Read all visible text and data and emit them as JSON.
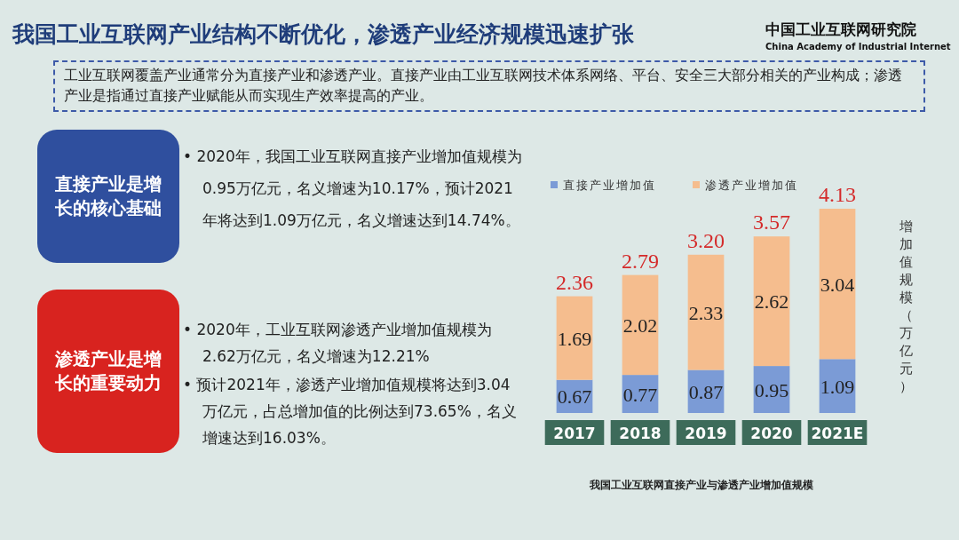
{
  "chart_data": [
    {
      "type": "other",
      "title": "我国工业互联网产业结构不断优化，渗透产业经济规模迅速扩张",
      "annotations": [
        "工业互联网覆盖产业通常分为直接产业和渗透产业。直接产业由工业互联网技术体系网络、平台、安全三大部分相关的产业构成；渗透产业是指通过直接产业赋能从而实现生产效率提高的产业。",
        "直接产业是增长的核心基础",
        "•  2020年，我国工业互联网直接产业增加值规模为0.95万亿元，名义增速为10.17%，预计2021年将达到1.09万亿元，名义增速达到14.74%。",
        "渗透产业是增长的重要动力",
        "•  2020年，工业互联网渗透产业增加值规模为2.62万亿元，名义增速为12.21%",
        "•  预计2021年，渗透产业增加值规模将达到3.04万亿元，占总增加值的比例达到73.65%，名义增速达到16.03%。",
        "中国工业互联网研究院",
        "China Academy of Industrial Internet"
      ]
    },
    {
      "type": "bar",
      "stacked": true,
      "data_labels": true,
      "legend": "top",
      "ylabel": "增加值规模（万亿元）",
      "categories": [
        "2017",
        "2018",
        "2019",
        "2020",
        "2021E"
      ],
      "series": [
        {
          "name": "直接产业增加值",
          "color": "#7b9bd6",
          "values": [
            0.67,
            0.77,
            0.87,
            0.95,
            1.09
          ]
        },
        {
          "name": "渗透产业增加值",
          "color": "#f5bd8e",
          "values": [
            1.69,
            2.02,
            2.33,
            2.62,
            3.04
          ]
        }
      ],
      "totals": [
        "2.36",
        "2.79",
        "3.20",
        "3.57",
        "4.13"
      ],
      "annotations": [
        "我国工业互联网直接产业与渗透产业增加值规模"
      ]
    }
  ]
}
